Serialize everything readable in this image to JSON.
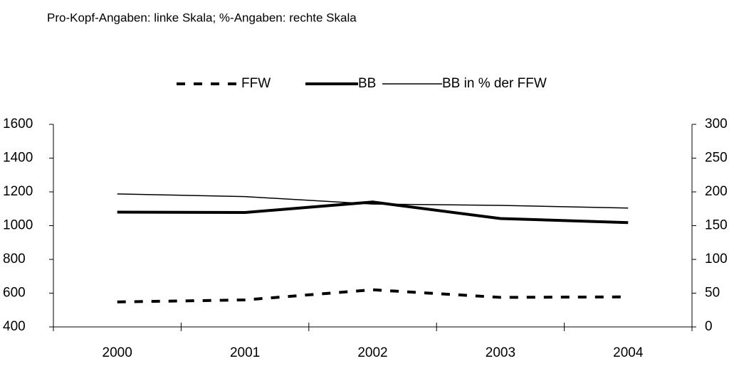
{
  "chart_data": {
    "type": "line",
    "subtitle": "Pro-Kopf-Angaben: linke Skala; %-Angaben: rechte Skala",
    "categories": [
      "2000",
      "2001",
      "2002",
      "2003",
      "2004"
    ],
    "series": [
      {
        "name": "FFW",
        "color": "#000000",
        "style": "dashed",
        "width": 4,
        "values": [
          548,
          560,
          620,
          575,
          578
        ]
      },
      {
        "name": "BB",
        "color": "#000000",
        "style": "solid",
        "width": 4,
        "values": [
          1080,
          1078,
          1140,
          1042,
          1018
        ]
      },
      {
        "name": "BB in % der FFW",
        "color": "#000000",
        "style": "solid",
        "width": 1.5,
        "axis": "y2",
        "values": [
          197,
          193,
          182,
          180,
          176
        ]
      }
    ],
    "ylim": [
      400,
      1600
    ],
    "yticks": [
      400,
      600,
      800,
      1000,
      1200,
      1400,
      1600
    ],
    "y2lim": [
      0,
      300
    ],
    "y2ticks": [
      0,
      50,
      100,
      150,
      200,
      250,
      300
    ],
    "legend": "top"
  }
}
